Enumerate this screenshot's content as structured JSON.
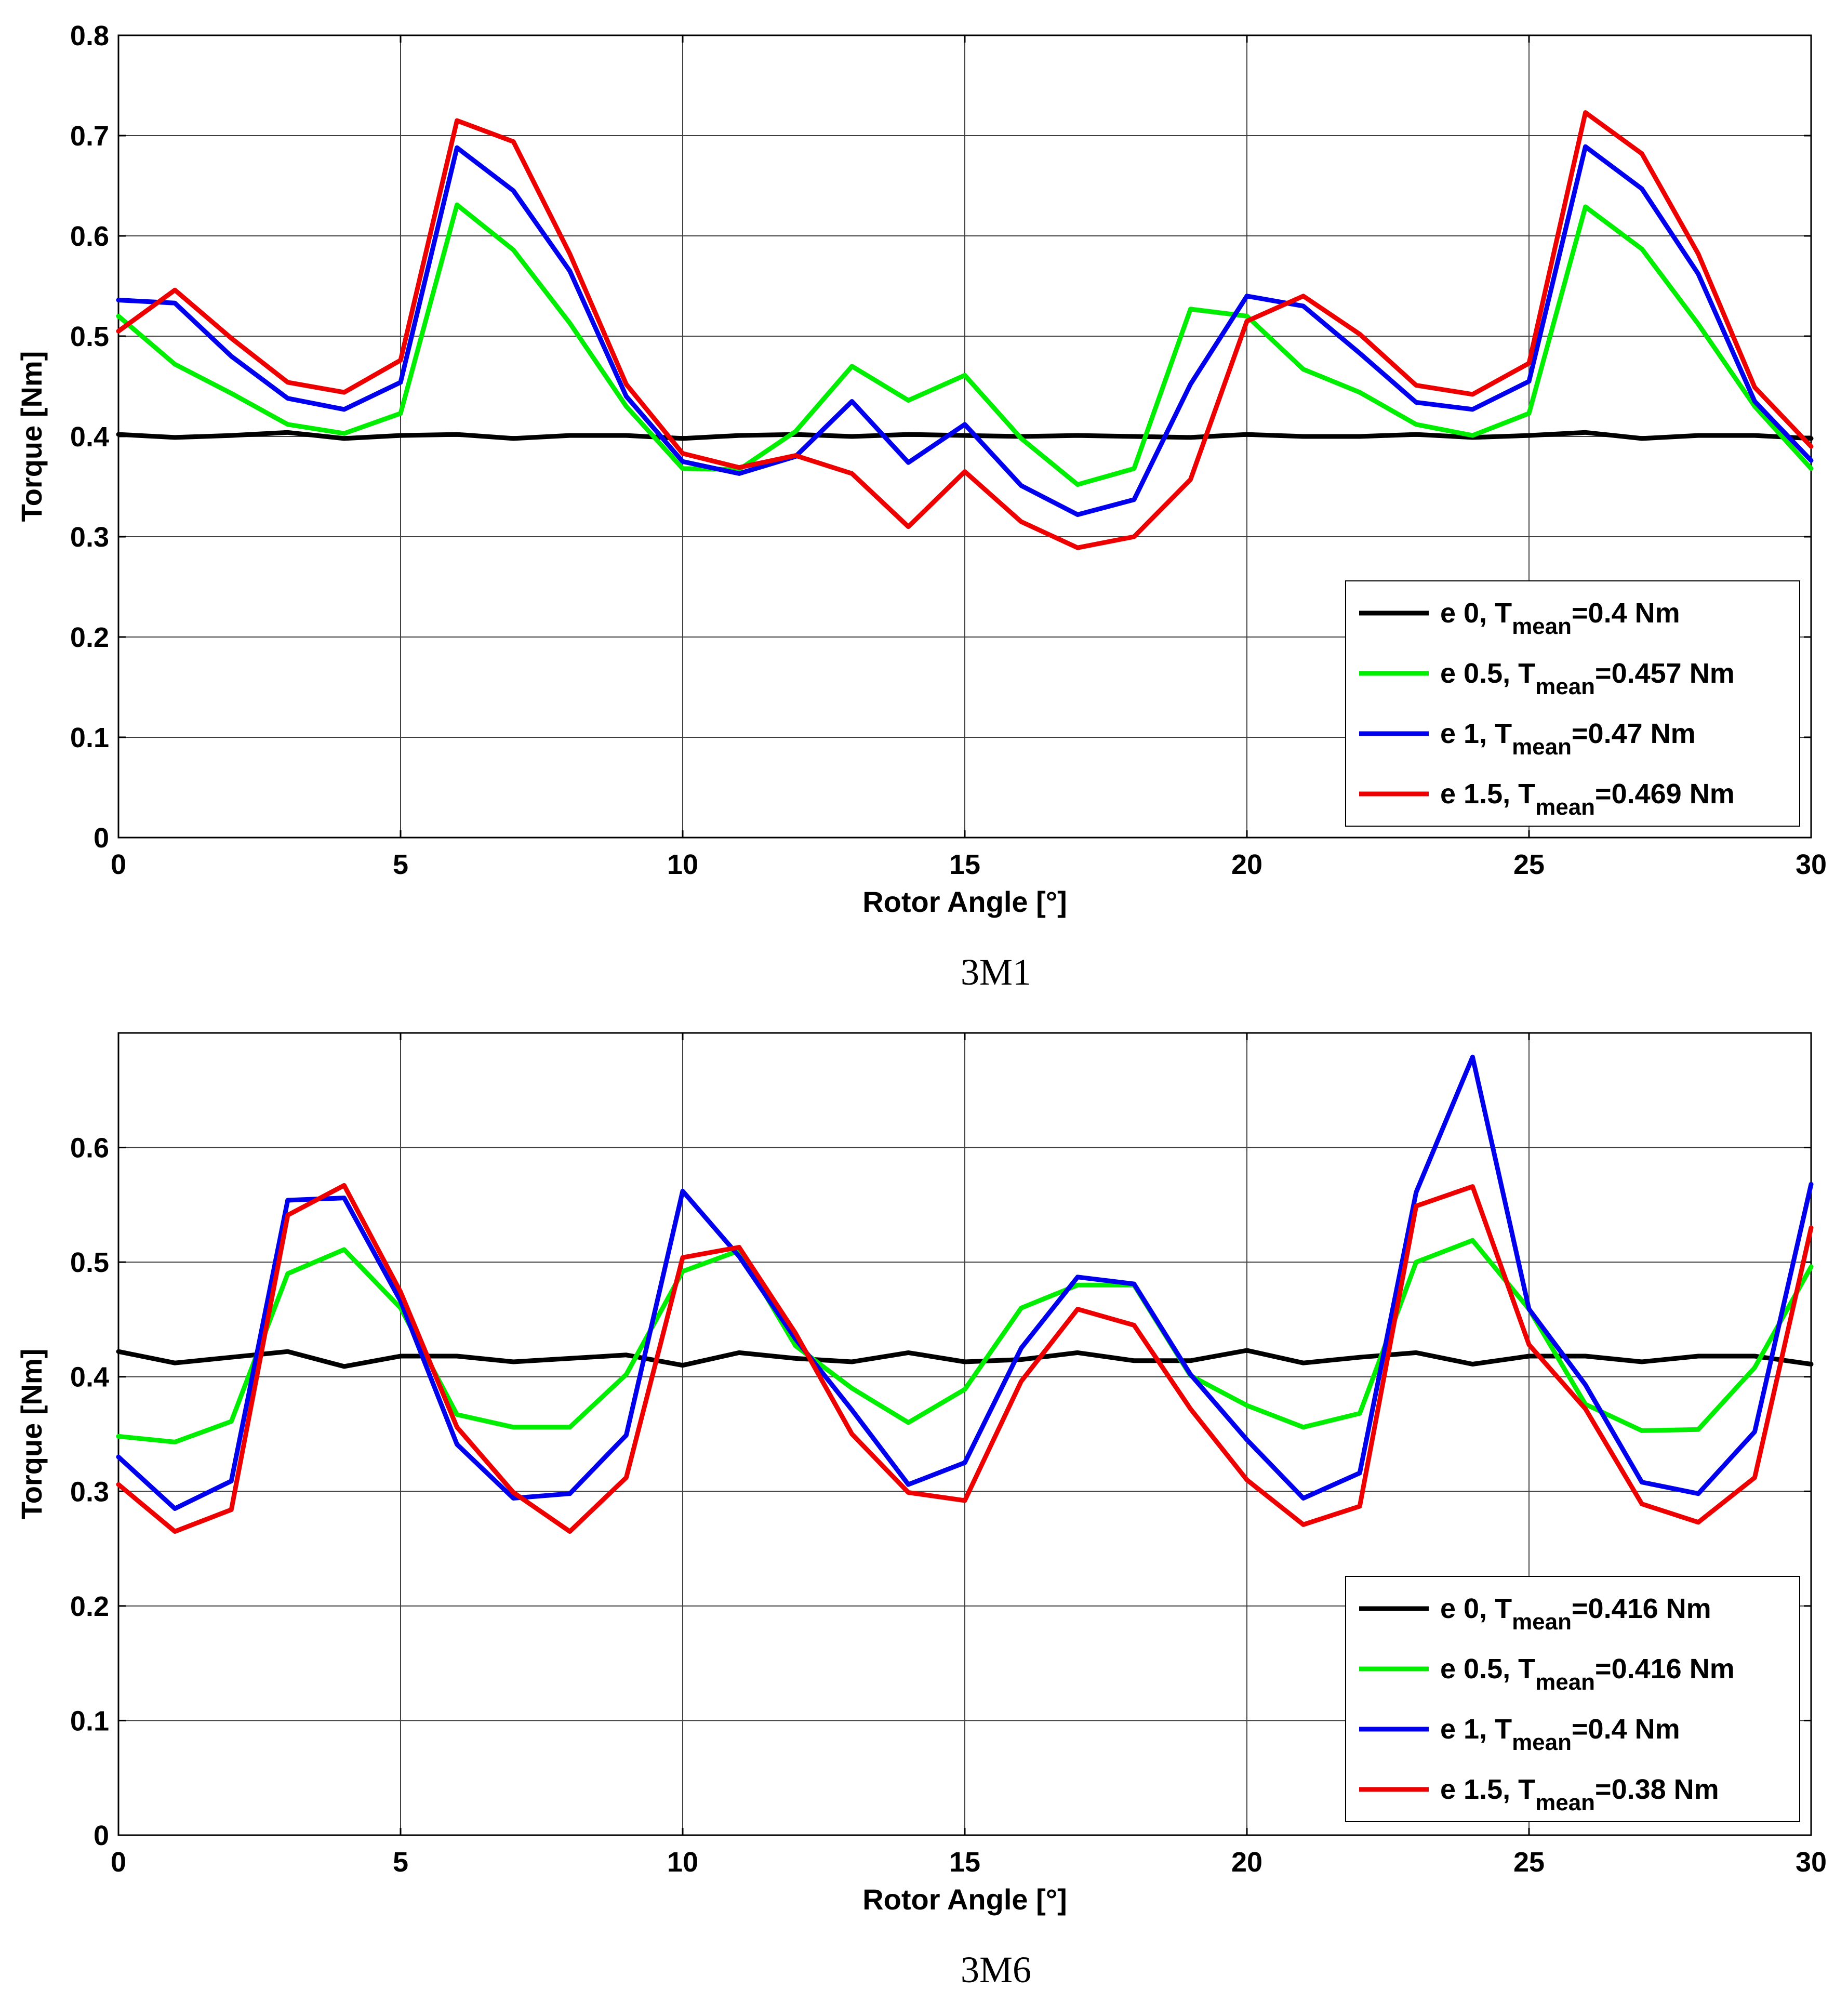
{
  "chart_data": [
    {
      "type": "line",
      "caption": "3M1",
      "xlabel": "Rotor Angle [°]",
      "ylabel": "Torque [Nm]",
      "xlim": [
        0,
        30
      ],
      "ylim": [
        0,
        0.8
      ],
      "xticks": [
        0,
        5,
        10,
        15,
        20,
        25,
        30
      ],
      "yticks": [
        0,
        0.1,
        0.2,
        0.3,
        0.4,
        0.5,
        0.6,
        0.7,
        0.8
      ],
      "ytick_labels": [
        "0",
        "0.1",
        "0.2",
        "0.3",
        "0.4",
        "0.5",
        "0.6",
        "0.7",
        "0.8"
      ],
      "grid": true,
      "legend_position": "bottom-right",
      "x": [
        0,
        1,
        2,
        3,
        4,
        5,
        6,
        7,
        8,
        9,
        10,
        11,
        12,
        13,
        14,
        15,
        16,
        17,
        18,
        19,
        20,
        21,
        22,
        23,
        24,
        25,
        26,
        27,
        28,
        29,
        30
      ],
      "series": [
        {
          "name": "e 0",
          "label_prefix": "e 0, T",
          "label_sub": "mean",
          "label_suffix": "=0.4 Nm",
          "color": "#000000",
          "values": [
            0.402,
            0.399,
            0.401,
            0.404,
            0.398,
            0.401,
            0.402,
            0.398,
            0.401,
            0.401,
            0.398,
            0.401,
            0.402,
            0.4,
            0.402,
            0.401,
            0.4,
            0.401,
            0.4,
            0.399,
            0.402,
            0.4,
            0.4,
            0.402,
            0.399,
            0.401,
            0.404,
            0.398,
            0.401,
            0.401,
            0.398
          ]
        },
        {
          "name": "e 0.5",
          "label_prefix": "e 0.5, T",
          "label_sub": "mean",
          "label_suffix": "=0.457 Nm",
          "color": "#00ee00",
          "values": [
            0.52,
            0.472,
            0.443,
            0.412,
            0.403,
            0.423,
            0.631,
            0.586,
            0.513,
            0.43,
            0.368,
            0.367,
            0.405,
            0.47,
            0.436,
            0.461,
            0.398,
            0.352,
            0.368,
            0.527,
            0.52,
            0.467,
            0.444,
            0.412,
            0.401,
            0.423,
            0.629,
            0.587,
            0.512,
            0.43,
            0.368
          ]
        },
        {
          "name": "e 1",
          "label_prefix": "e 1, T",
          "label_sub": "mean",
          "label_suffix": "=0.47 Nm",
          "color": "#0000ee",
          "values": [
            0.536,
            0.533,
            0.48,
            0.438,
            0.427,
            0.454,
            0.688,
            0.645,
            0.565,
            0.44,
            0.375,
            0.363,
            0.38,
            0.435,
            0.374,
            0.412,
            0.351,
            0.322,
            0.337,
            0.452,
            0.54,
            0.53,
            0.483,
            0.434,
            0.427,
            0.455,
            0.689,
            0.647,
            0.562,
            0.435,
            0.376
          ]
        },
        {
          "name": "e 1.5",
          "label_prefix": "e 1.5, T",
          "label_sub": "mean",
          "label_suffix": "=0.469 Nm",
          "color": "#ee0000",
          "values": [
            0.505,
            0.546,
            0.498,
            0.454,
            0.444,
            0.476,
            0.715,
            0.694,
            0.582,
            0.452,
            0.383,
            0.369,
            0.381,
            0.363,
            0.31,
            0.365,
            0.315,
            0.289,
            0.3,
            0.357,
            0.515,
            0.54,
            0.502,
            0.451,
            0.442,
            0.473,
            0.723,
            0.682,
            0.582,
            0.449,
            0.39
          ]
        }
      ]
    },
    {
      "type": "line",
      "caption": "3M6",
      "xlabel": "Rotor Angle [°]",
      "ylabel": "Torque [Nm]",
      "xlim": [
        0,
        30
      ],
      "ylim": [
        0,
        0.7
      ],
      "xticks": [
        0,
        5,
        10,
        15,
        20,
        25,
        30
      ],
      "yticks": [
        0,
        0.1,
        0.2,
        0.3,
        0.4,
        0.5,
        0.6
      ],
      "ytick_labels": [
        "0",
        "0.1",
        "0.2",
        "0.3",
        "0.4",
        "0.5",
        "0.6"
      ],
      "grid": true,
      "legend_position": "bottom-right",
      "x": [
        0,
        1,
        2,
        3,
        4,
        5,
        6,
        7,
        8,
        9,
        10,
        11,
        12,
        13,
        14,
        15,
        16,
        17,
        18,
        19,
        20,
        21,
        22,
        23,
        24,
        25,
        26,
        27,
        28,
        29,
        30
      ],
      "series": [
        {
          "name": "e 0",
          "label_prefix": "e 0, T",
          "label_sub": "mean",
          "label_suffix": "=0.416 Nm",
          "color": "#000000",
          "values": [
            0.422,
            0.412,
            0.417,
            0.422,
            0.409,
            0.418,
            0.418,
            0.413,
            0.416,
            0.419,
            0.41,
            0.421,
            0.416,
            0.413,
            0.421,
            0.413,
            0.415,
            0.421,
            0.414,
            0.414,
            0.423,
            0.412,
            0.417,
            0.421,
            0.411,
            0.418,
            0.418,
            0.413,
            0.418,
            0.418,
            0.411
          ]
        },
        {
          "name": "e 0.5",
          "label_prefix": "e 0.5, T",
          "label_sub": "mean",
          "label_suffix": "=0.416 Nm",
          "color": "#00ee00",
          "values": [
            0.348,
            0.343,
            0.361,
            0.49,
            0.511,
            0.46,
            0.367,
            0.356,
            0.356,
            0.402,
            0.492,
            0.51,
            0.427,
            0.39,
            0.36,
            0.389,
            0.46,
            0.48,
            0.48,
            0.401,
            0.375,
            0.356,
            0.368,
            0.5,
            0.519,
            0.459,
            0.376,
            0.353,
            0.354,
            0.408,
            0.496
          ]
        },
        {
          "name": "e 1",
          "label_prefix": "e 1, T",
          "label_sub": "mean",
          "label_suffix": "=0.4 Nm",
          "color": "#0000ee",
          "values": [
            0.33,
            0.285,
            0.309,
            0.554,
            0.556,
            0.466,
            0.341,
            0.294,
            0.298,
            0.349,
            0.562,
            0.505,
            0.433,
            0.371,
            0.306,
            0.325,
            0.425,
            0.487,
            0.481,
            0.402,
            0.345,
            0.294,
            0.316,
            0.561,
            0.679,
            0.459,
            0.393,
            0.308,
            0.298,
            0.352,
            0.568
          ]
        },
        {
          "name": "e 1.5",
          "label_prefix": "e 1.5, T",
          "label_sub": "mean",
          "label_suffix": "=0.38 Nm",
          "color": "#ee0000",
          "values": [
            0.306,
            0.265,
            0.284,
            0.541,
            0.567,
            0.474,
            0.356,
            0.299,
            0.265,
            0.312,
            0.504,
            0.513,
            0.438,
            0.35,
            0.299,
            0.292,
            0.396,
            0.459,
            0.445,
            0.372,
            0.31,
            0.271,
            0.287,
            0.549,
            0.566,
            0.428,
            0.372,
            0.289,
            0.273,
            0.312,
            0.53
          ]
        }
      ]
    }
  ]
}
